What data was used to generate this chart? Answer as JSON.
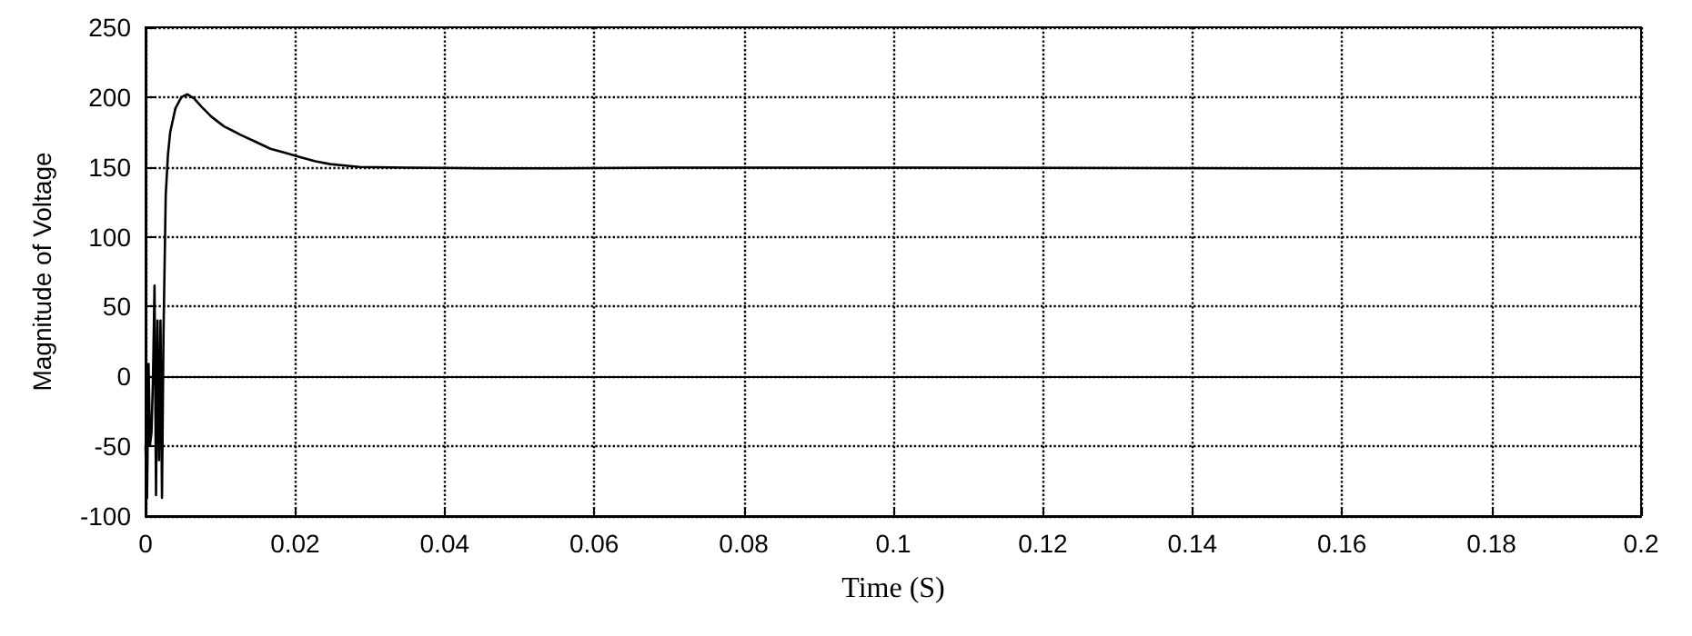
{
  "chart_data": {
    "type": "line",
    "xlabel": "Time (S)",
    "ylabel": "Magnitude of Voltage",
    "x": [
      0,
      0.0002,
      0.0004,
      0.0006,
      0.0008,
      0.001,
      0.0012,
      0.0014,
      0.0016,
      0.0018,
      0.002,
      0.0022,
      0.0024,
      0.0027,
      0.003,
      0.0033,
      0.004,
      0.0048,
      0.0056,
      0.0065,
      0.0075,
      0.0088,
      0.0105,
      0.0127,
      0.0147,
      0.0167,
      0.0187,
      0.0207,
      0.0227,
      0.0247,
      0.0267,
      0.0286,
      0.035,
      0.045,
      0.055,
      0.07,
      0.1,
      0.15,
      0.2
    ],
    "series": [
      {
        "color": "#000000",
        "values": [
          -50,
          -87,
          9,
          -49,
          -40,
          0,
          65,
          -85,
          40,
          -60,
          40,
          -87,
          30,
          130,
          159,
          175,
          192,
          200,
          202,
          199,
          193,
          186,
          179,
          173,
          168,
          163,
          160,
          157,
          154,
          152,
          151,
          150,
          149.5,
          149,
          149,
          149.5,
          149.5,
          149,
          149
        ]
      }
    ],
    "xlim": [
      0,
      0.2
    ],
    "xticks": [
      0,
      0.02,
      0.04,
      0.06,
      0.08,
      0.1,
      0.12,
      0.14,
      0.16,
      0.18,
      0.2
    ],
    "ylim": [
      -100,
      250
    ],
    "yticks": [
      -100,
      -50,
      0,
      50,
      100,
      150,
      200,
      250
    ],
    "grid": true,
    "line_style": "solid",
    "marker": "none",
    "ref_lines": [
      {
        "axis": "y",
        "value": 0,
        "color": "#000000",
        "line_style": "solid"
      }
    ]
  }
}
